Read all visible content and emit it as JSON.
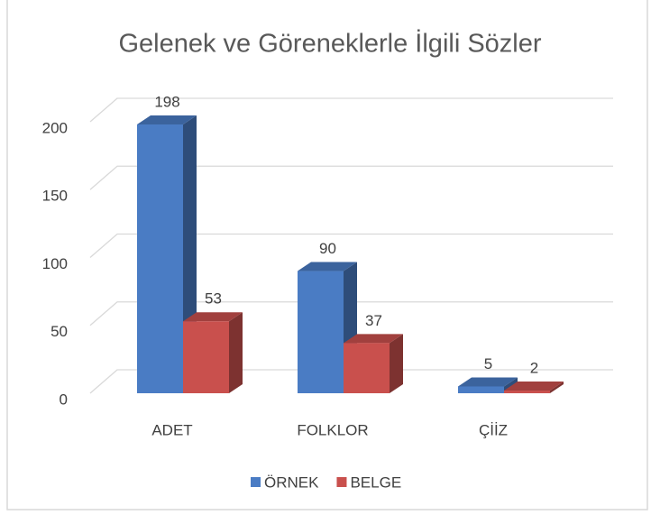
{
  "chart_data": {
    "type": "bar3d",
    "title": "Gelenek ve Göreneklerle İlgili Sözler",
    "categories": [
      "ADET",
      "FOLKLOR",
      "ÇİİZ"
    ],
    "series": [
      {
        "name": "ÖRNEK",
        "color": "#4a7cc4",
        "values": [
          198,
          90,
          5
        ]
      },
      {
        "name": "BELGE",
        "color": "#c9504d",
        "values": [
          53,
          37,
          2
        ]
      }
    ],
    "ylim": [
      0,
      200
    ],
    "yticks": [
      0,
      50,
      100,
      150,
      200
    ],
    "grid": true,
    "legend": "bottom"
  }
}
